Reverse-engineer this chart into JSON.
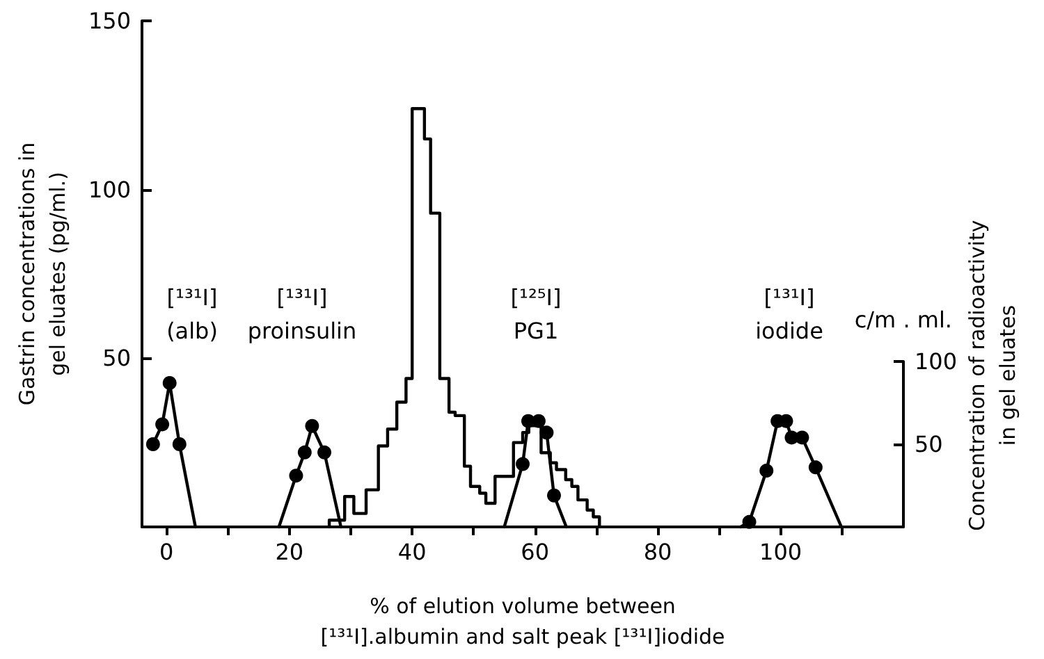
{
  "chart_data": {
    "type": "step",
    "xlabel": "% of elution volume between\n[¹³¹I].albumin and salt peak [¹³¹I]iodide",
    "ylabel": "Gastrin concentrations in\ngel eluates (pg/ml.)",
    "y2label": "Concentration of radioactivity\nin gel eluates",
    "annotations": [
      "[¹³¹I]\n(alb)",
      "[¹³¹I]\nproinsulin",
      "[¹²⁵I]\nPG1",
      "[¹³¹I]\niodide",
      "c/m . ml."
    ],
    "xlim": [
      -4,
      120
    ],
    "xticks": [
      0,
      {
        "value": 10,
        "label": null
      },
      20,
      {
        "value": 30,
        "label": null
      },
      40,
      {
        "value": 50,
        "label": null
      },
      60,
      {
        "value": 70,
        "label": null
      },
      80,
      {
        "value": 90,
        "label": null
      },
      100,
      {
        "value": 110,
        "label": null
      }
    ],
    "ylim": [
      0,
      150
    ],
    "yticks": [
      50,
      100,
      150
    ],
    "y2lim": [
      0,
      100
    ],
    "y2ticks": [
      50,
      100
    ],
    "grid": false,
    "series": [
      {
        "color": "#000000",
        "marker": "none",
        "x": [
          26.5,
          26.5,
          29,
          30.5,
          32.5,
          34.5,
          36,
          37.5,
          39,
          40,
          42,
          43,
          44.5,
          46,
          47,
          48.5,
          49.5,
          51,
          52,
          53.5,
          56.5,
          58,
          59,
          61,
          62.5,
          63.5,
          65,
          66,
          67,
          68.5,
          69.5,
          70.5
        ],
        "values": [
          0,
          2,
          9,
          4,
          11,
          24,
          29,
          37,
          44,
          124,
          115,
          93,
          44,
          34,
          33,
          18,
          12,
          10,
          7,
          15,
          25,
          28,
          30,
          22,
          19,
          17,
          14,
          12,
          8,
          5,
          3,
          0
        ]
      },
      {
        "type": "line",
        "axis": "y2",
        "color": "#000000",
        "marker": "none",
        "x": [
          -2.2,
          -0.7,
          0.5,
          2.1,
          4.7,
          null,
          18.3,
          21.1,
          22.5,
          23.7,
          25.7,
          28.4,
          null,
          55,
          58,
          58.9,
          60.6,
          61.9,
          63.1,
          65.1,
          null,
          93.5,
          94.9,
          97.7,
          99.5,
          100.9,
          101.8,
          103.5,
          105.7,
          109.9
        ],
        "values": [
          50,
          62,
          87,
          50,
          0,
          null,
          0,
          31,
          45,
          61,
          45,
          0,
          null,
          0,
          38,
          64,
          64,
          57,
          19,
          0,
          null,
          0,
          3,
          34,
          64,
          64,
          54,
          54,
          36,
          0
        ]
      },
      {
        "type": "scatter",
        "axis": "y2",
        "color": "#000000",
        "marker": "circle",
        "x": [
          -2.2,
          -0.7,
          0.5,
          2.1,
          21.1,
          22.5,
          23.7,
          25.7,
          58,
          58.9,
          60.6,
          61.9,
          63.1,
          94.9,
          97.7,
          99.5,
          100.9,
          101.8,
          103.5,
          105.7
        ],
        "values": [
          50,
          62,
          87,
          50,
          31,
          45,
          61,
          45,
          38,
          64,
          64,
          57,
          19,
          3,
          34,
          64,
          64,
          54,
          54,
          36
        ]
      }
    ]
  }
}
